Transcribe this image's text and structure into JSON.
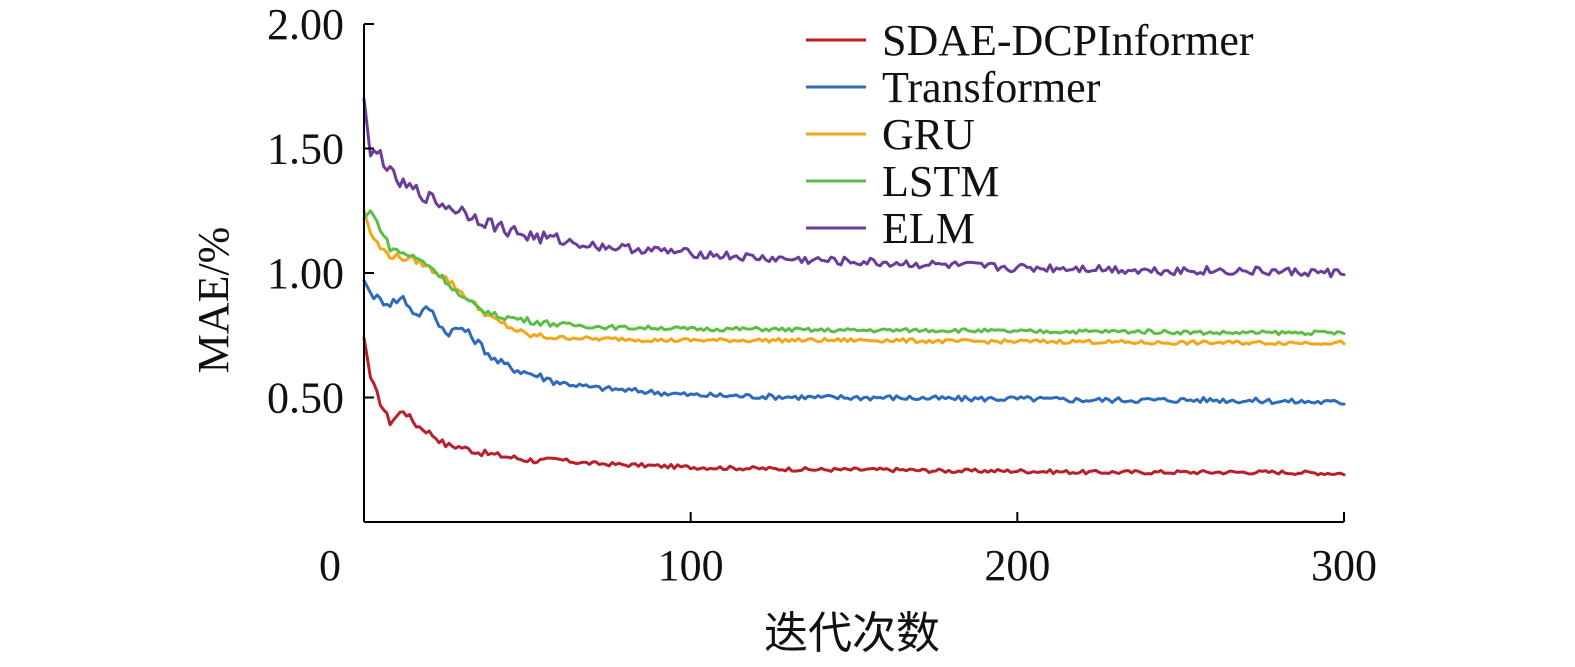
{
  "chart_data": {
    "type": "line",
    "title": "",
    "xlabel": "迭代次数",
    "ylabel": "MAE/%",
    "xlim": [
      0,
      300
    ],
    "ylim": [
      0,
      2.0
    ],
    "xticks": [
      0,
      100,
      200,
      300
    ],
    "xtick_labels": [
      "0",
      "100",
      "200",
      "300"
    ],
    "yticks": [
      0.5,
      1.0,
      1.5,
      2.0
    ],
    "ytick_labels": [
      "0.50",
      "1.00",
      "1.50",
      "2.00"
    ],
    "legend_position": "top-right",
    "grid": false,
    "x": [
      0,
      2,
      5,
      8,
      12,
      16,
      20,
      25,
      30,
      35,
      40,
      45,
      50,
      55,
      60,
      65,
      70,
      80,
      90,
      100,
      120,
      140,
      160,
      180,
      200,
      220,
      240,
      260,
      280,
      300
    ],
    "series": [
      {
        "name": "SDAE-DCPInformer",
        "color": "#b8202a",
        "values": [
          0.74,
          0.58,
          0.48,
          0.4,
          0.45,
          0.39,
          0.36,
          0.31,
          0.3,
          0.28,
          0.27,
          0.26,
          0.25,
          0.245,
          0.25,
          0.24,
          0.235,
          0.23,
          0.225,
          0.22,
          0.215,
          0.21,
          0.21,
          0.205,
          0.205,
          0.2,
          0.2,
          0.2,
          0.2,
          0.195
        ]
      },
      {
        "name": "Transformer",
        "color": "#2f6bbd",
        "values": [
          0.97,
          0.92,
          0.89,
          0.88,
          0.9,
          0.83,
          0.86,
          0.76,
          0.78,
          0.72,
          0.65,
          0.62,
          0.6,
          0.58,
          0.56,
          0.55,
          0.54,
          0.53,
          0.52,
          0.51,
          0.505,
          0.5,
          0.5,
          0.495,
          0.495,
          0.49,
          0.49,
          0.49,
          0.485,
          0.48
        ]
      },
      {
        "name": "GRU",
        "color": "#f2a71b",
        "values": [
          1.25,
          1.16,
          1.1,
          1.07,
          1.06,
          1.05,
          1.02,
          0.98,
          0.92,
          0.86,
          0.81,
          0.78,
          0.75,
          0.745,
          0.74,
          0.74,
          0.735,
          0.735,
          0.73,
          0.73,
          0.73,
          0.73,
          0.73,
          0.725,
          0.725,
          0.725,
          0.72,
          0.72,
          0.72,
          0.72
        ]
      },
      {
        "name": "LSTM",
        "color": "#5cbf45",
        "values": [
          1.22,
          1.25,
          1.18,
          1.1,
          1.08,
          1.06,
          1.03,
          0.97,
          0.9,
          0.86,
          0.83,
          0.82,
          0.81,
          0.8,
          0.795,
          0.79,
          0.785,
          0.78,
          0.78,
          0.775,
          0.775,
          0.77,
          0.77,
          0.77,
          0.765,
          0.765,
          0.765,
          0.76,
          0.76,
          0.76
        ]
      },
      {
        "name": "ELM",
        "color": "#6a3d9a",
        "values": [
          1.7,
          1.47,
          1.48,
          1.4,
          1.35,
          1.33,
          1.3,
          1.27,
          1.25,
          1.22,
          1.19,
          1.17,
          1.15,
          1.14,
          1.13,
          1.12,
          1.11,
          1.1,
          1.09,
          1.08,
          1.06,
          1.05,
          1.04,
          1.03,
          1.02,
          1.02,
          1.01,
          1.01,
          1.005,
          1.0
        ]
      }
    ]
  }
}
